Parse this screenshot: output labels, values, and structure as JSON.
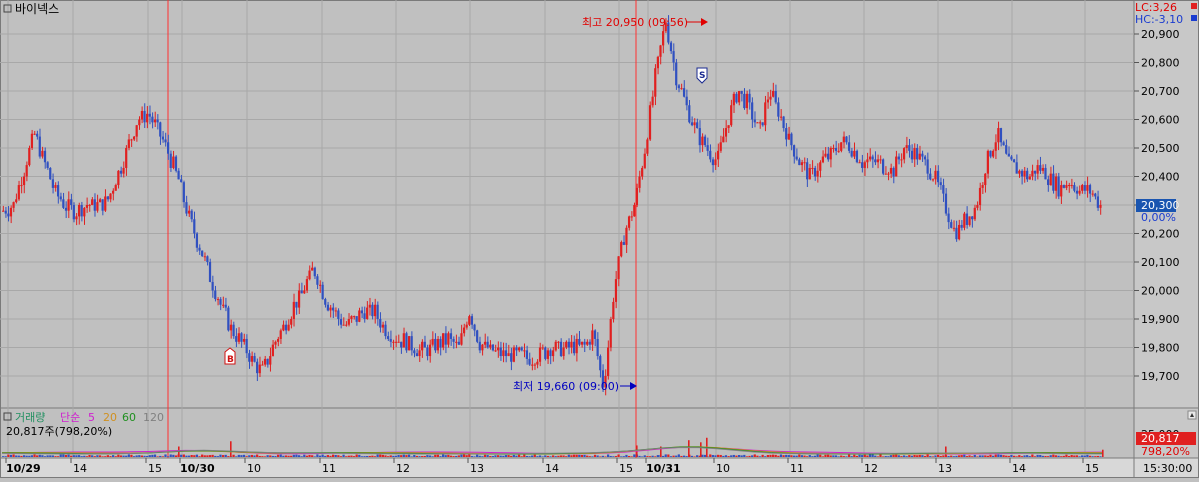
{
  "symbol": "바이넥스",
  "colors": {
    "background": "#c0c0c0",
    "grid": "#a8a8a8",
    "up": "#e02020",
    "down": "#3050c0",
    "candle_border": "#7a3a8a",
    "session_line": "#ff3030",
    "high_marker": "#e00000",
    "low_marker": "#0000c0",
    "current_box": "#1a55b0",
    "volume_box": "#e02020",
    "ma5": "#d020d0",
    "ma20": "#d09020",
    "ma60": "#209020",
    "ma120": "#808080"
  },
  "top_right": {
    "lc": "LC:3,26",
    "hc": "HC:-3,10"
  },
  "current": {
    "price_label": "20,300",
    "change_label": "0,00%"
  },
  "markers": {
    "high_label": "최고 20,950 (09:56)",
    "low_label": "최저 19,660 (09:00)",
    "buy_label": "B",
    "sell_label": "S"
  },
  "volume_panel": {
    "title": "거래량",
    "ma_label": "단순",
    "periods": [
      "5",
      "20",
      "60",
      "120"
    ],
    "info": "20,817주(798,20%)",
    "axis_label": "25,000",
    "value_label": "20,817",
    "pct_label": "798,20%"
  },
  "time_axis": {
    "labels": [
      "10/29",
      "14",
      "15",
      "10/30",
      "10",
      "11",
      "12",
      "13",
      "14",
      "15",
      "10/31",
      "10",
      "11",
      "12",
      "13",
      "14",
      "15"
    ],
    "right_label": "15:30:00"
  },
  "chart_data": {
    "type": "candlestick",
    "title": "바이넥스",
    "y_axis": {
      "ticks": [
        19700,
        19800,
        19900,
        20000,
        20100,
        20200,
        20300,
        20400,
        20500,
        20600,
        20700,
        20800,
        20900
      ],
      "tick_labels": [
        "19,700",
        "19,800",
        "19,900",
        "20,000",
        "20,100",
        "20,200",
        "20,300",
        "20,400",
        "20,500",
        "20,600",
        "20,700",
        "20,800",
        "20,900"
      ],
      "ylim": [
        19620,
        21000
      ]
    },
    "sessions": [
      "10/29",
      "10/30",
      "10/31"
    ],
    "high": {
      "value": 20950,
      "time": "09:56"
    },
    "low": {
      "value": 19660,
      "time": "09:00"
    },
    "last_price": 20300,
    "change_pct": 0.0,
    "price_path": [
      20280,
      20300,
      20420,
      20550,
      20450,
      20350,
      20300,
      20280,
      20300,
      20300,
      20310,
      20400,
      20500,
      20600,
      20620,
      20560,
      20480,
      20380,
      20250,
      20150,
      20050,
      19950,
      19870,
      19820,
      19760,
      19710,
      19800,
      19870,
      19940,
      20000,
      20080,
      19980,
      19920,
      19880,
      19900,
      19930,
      19920,
      19860,
      19830,
      19820,
      19790,
      19790,
      19810,
      19830,
      19800,
      19930,
      19820,
      19790,
      19780,
      19770,
      19770,
      19760,
      19780,
      19800,
      19790,
      19810,
      19800,
      19850,
      19660,
      20000,
      20200,
      20300,
      20500,
      20750,
      20950,
      20750,
      20650,
      20550,
      20500,
      20450,
      20600,
      20700,
      20650,
      20550,
      20700,
      20620,
      20520,
      20450,
      20400,
      20450,
      20480,
      20520,
      20500,
      20450,
      20450,
      20440,
      20420,
      20500,
      20480,
      20450,
      20400,
      20300,
      20200,
      20250,
      20300,
      20450,
      20550,
      20450,
      20420,
      20400,
      20430,
      20400,
      20360,
      20380,
      20350,
      20350,
      20300
    ],
    "volume": {
      "unit": "주",
      "last_volume": 20817,
      "last_volume_pct": 798.2,
      "axis_max": 25000,
      "spikes": [
        {
          "x": 230,
          "value": 45000
        },
        {
          "x": 178,
          "value": 30000
        },
        {
          "x": 636,
          "value": 33000
        },
        {
          "x": 660,
          "value": 30000
        },
        {
          "x": 688,
          "value": 48000
        },
        {
          "x": 700,
          "value": 42000
        },
        {
          "x": 706,
          "value": 55000
        },
        {
          "x": 945,
          "value": 30000
        },
        {
          "x": 1102,
          "value": 20817
        }
      ]
    }
  }
}
